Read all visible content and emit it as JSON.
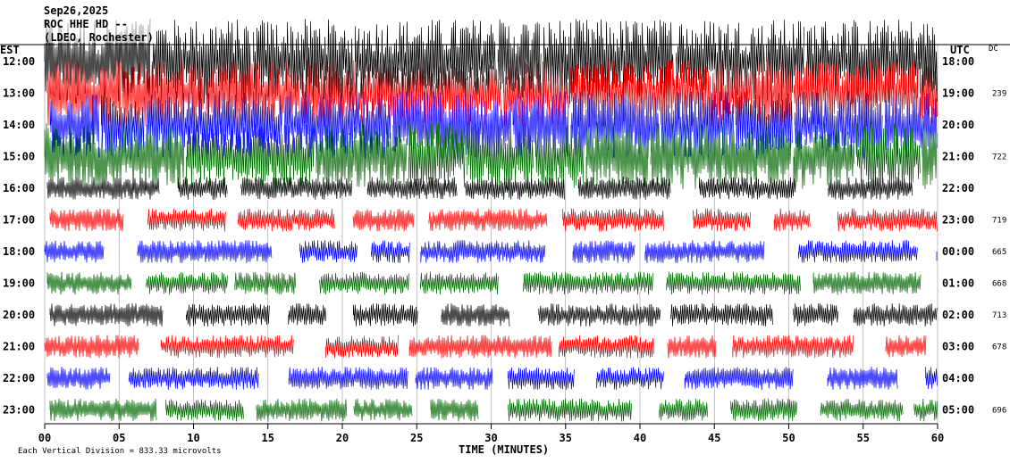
{
  "header": {
    "date": "Sep26,2025",
    "station": "ROC HHE HD --",
    "location": "(LDEO, Rochester)"
  },
  "left_zone_label": "EST",
  "right_zone_label": "UTC",
  "dc_label": "DC",
  "footer": {
    "scale_note": "Each Vertical Division = 833.33 microvolts",
    "x_axis_title": "TIME (MINUTES)"
  },
  "colors": {
    "trace_cycle": [
      "#000000",
      "#ff0000",
      "#0000ff",
      "#006600"
    ],
    "background": "#ffffff",
    "grid": "#000000"
  },
  "chart_data": {
    "type": "line",
    "title": "",
    "xlabel": "TIME (MINUTES)",
    "ylabel": "",
    "xlim": [
      0,
      60
    ],
    "x_ticks": [
      "00",
      "05",
      "10",
      "15",
      "20",
      "25",
      "30",
      "35",
      "40",
      "45",
      "50",
      "55",
      "60"
    ],
    "rows": [
      {
        "est": "12:00",
        "utc": "18:00",
        "dc": ""
      },
      {
        "est": "13:00",
        "utc": "19:00",
        "dc": "239"
      },
      {
        "est": "14:00",
        "utc": "20:00",
        "dc": ""
      },
      {
        "est": "15:00",
        "utc": "21:00",
        "dc": "722"
      },
      {
        "est": "16:00",
        "utc": "22:00",
        "dc": ""
      },
      {
        "est": "17:00",
        "utc": "23:00",
        "dc": "719"
      },
      {
        "est": "18:00",
        "utc": "00:00",
        "dc": "665"
      },
      {
        "est": "19:00",
        "utc": "01:00",
        "dc": "668"
      },
      {
        "est": "20:00",
        "utc": "02:00",
        "dc": "713"
      },
      {
        "est": "21:00",
        "utc": "03:00",
        "dc": "678"
      },
      {
        "est": "22:00",
        "utc": "04:00",
        "dc": ""
      },
      {
        "est": "23:00",
        "utc": "05:00",
        "dc": "696"
      }
    ],
    "grid": true
  }
}
